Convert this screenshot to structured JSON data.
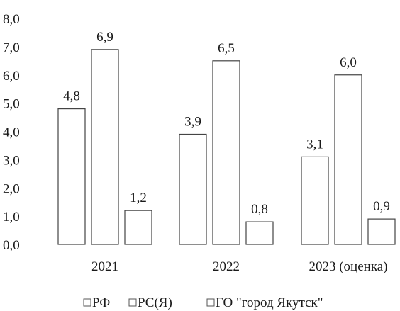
{
  "chart_data": {
    "type": "bar",
    "categories": [
      "2021",
      "2022",
      "2023 (оценка)"
    ],
    "series": [
      {
        "name": "РФ",
        "values": [
          4.8,
          3.9,
          3.1
        ],
        "labels": [
          "4,8",
          "3,9",
          "3,1"
        ]
      },
      {
        "name": "РС(Я)",
        "values": [
          6.9,
          6.5,
          6.0
        ],
        "labels": [
          "6,9",
          "6,5",
          "6,0"
        ]
      },
      {
        "name": "ГО \"город Якутск\"",
        "values": [
          1.2,
          0.8,
          0.9
        ],
        "labels": [
          "1,2",
          "0,8",
          "0,9"
        ]
      }
    ],
    "ylim": [
      0,
      8
    ],
    "yticks": [
      "0,0",
      "1,0",
      "2,0",
      "3,0",
      "4,0",
      "5,0",
      "6,0",
      "7,0",
      "8,0"
    ],
    "grid": false,
    "legend_position": "bottom"
  }
}
